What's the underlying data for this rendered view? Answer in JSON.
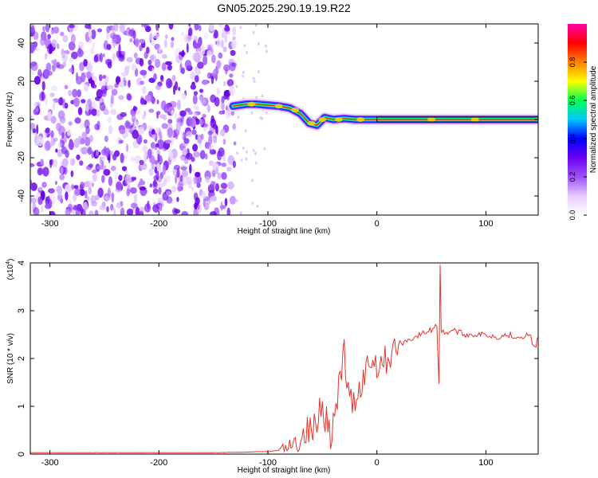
{
  "figure": {
    "title": "GN05.2025.290.19.19.R22"
  },
  "chart_data": [
    {
      "type": "heatmap",
      "title": "GN05.2025.290.19.19.R22",
      "xlabel": "Height of straight line (km)",
      "ylabel": "Frequency (Hz)",
      "xlim": [
        -318,
        148
      ],
      "ylim": [
        -50,
        50
      ],
      "xticks": [
        -300,
        -200,
        -100,
        0,
        100
      ],
      "xtick_labels": [
        "-300",
        "-200",
        "-100",
        "0",
        "100"
      ],
      "yticks": [
        -40,
        -20,
        0,
        20,
        40
      ],
      "ytick_labels": [
        "-40",
        "-20",
        "0",
        "20",
        "40"
      ],
      "colorbar": {
        "label": "Normalized spectral amplitude",
        "range": [
          0,
          1
        ],
        "ticks": [
          0.0,
          0.2,
          0.4,
          0.6,
          0.8
        ],
        "tick_labels": [
          "0.0",
          "0.2",
          "0.4",
          "0.6",
          "0.8"
        ],
        "colormap": [
          "#ffffff",
          "#e6ccff",
          "#a050ff",
          "#6a00f0",
          "#0000ff",
          "#00c8ff",
          "#00ff50",
          "#ffff00",
          "#ff8000",
          "#ff0000",
          "#ff00aa"
        ]
      },
      "noise_region": {
        "x_range": [
          -318,
          -130
        ],
        "freq_range": [
          -50,
          50
        ],
        "dominant_color": "#7a1ef0"
      },
      "ridge": [
        {
          "x": -132,
          "freq": 7
        },
        {
          "x": -120,
          "freq": 8
        },
        {
          "x": -110,
          "freq": 8
        },
        {
          "x": -100,
          "freq": 7.5
        },
        {
          "x": -90,
          "freq": 7
        },
        {
          "x": -80,
          "freq": 6
        },
        {
          "x": -70,
          "freq": 3
        },
        {
          "x": -62,
          "freq": -2
        },
        {
          "x": -55,
          "freq": -3
        },
        {
          "x": -48,
          "freq": 1
        },
        {
          "x": -40,
          "freq": 0
        },
        {
          "x": -30,
          "freq": 0.5
        },
        {
          "x": -20,
          "freq": 0
        },
        {
          "x": 0,
          "freq": 0
        },
        {
          "x": 50,
          "freq": 0
        },
        {
          "x": 100,
          "freq": 0
        },
        {
          "x": 148,
          "freq": 0
        }
      ]
    },
    {
      "type": "line",
      "xlabel": "Height of straight line (km)",
      "ylabel": "SNR (10 * v/v)",
      "y_multiplier": "(x10",
      "y_multiplier_exp": "4",
      "y_multiplier_close": ")",
      "xlim": [
        -318,
        148
      ],
      "ylim": [
        0,
        4
      ],
      "xticks": [
        -300,
        -200,
        -100,
        0,
        100
      ],
      "xtick_labels": [
        "-300",
        "-200",
        "-100",
        "0",
        "100"
      ],
      "yticks": [
        0,
        1,
        2,
        3,
        4
      ],
      "ytick_labels": [
        "0",
        "1",
        "2",
        "3",
        "4"
      ],
      "color": "#e8322a",
      "series": [
        {
          "x": [
            -318,
            -250,
            -200,
            -150,
            -120,
            -110,
            -100,
            -90,
            -80,
            -75,
            -70,
            -65,
            -60,
            -55,
            -50,
            -45,
            -40,
            -35,
            -30,
            -25,
            -20,
            -15,
            -10,
            -5,
            0,
            10,
            20,
            30,
            40,
            50,
            55,
            57,
            58,
            59,
            60,
            62,
            65,
            70,
            80,
            90,
            100,
            110,
            120,
            130,
            140,
            145,
            148
          ],
          "y": [
            0.03,
            0.03,
            0.03,
            0.03,
            0.04,
            0.05,
            0.05,
            0.08,
            0.12,
            0.2,
            0.35,
            0.5,
            0.45,
            0.6,
            1.3,
            0.5,
            0.6,
            1.2,
            2.2,
            0.9,
            1.2,
            1.4,
            1.8,
            2.0,
            1.9,
            2.0,
            2.3,
            2.4,
            2.5,
            2.6,
            2.7,
            1.5,
            4.0,
            2.6,
            2.55,
            2.55,
            2.55,
            2.6,
            2.5,
            2.5,
            2.5,
            2.45,
            2.5,
            2.45,
            2.5,
            2.2,
            2.45
          ]
        }
      ]
    }
  ]
}
